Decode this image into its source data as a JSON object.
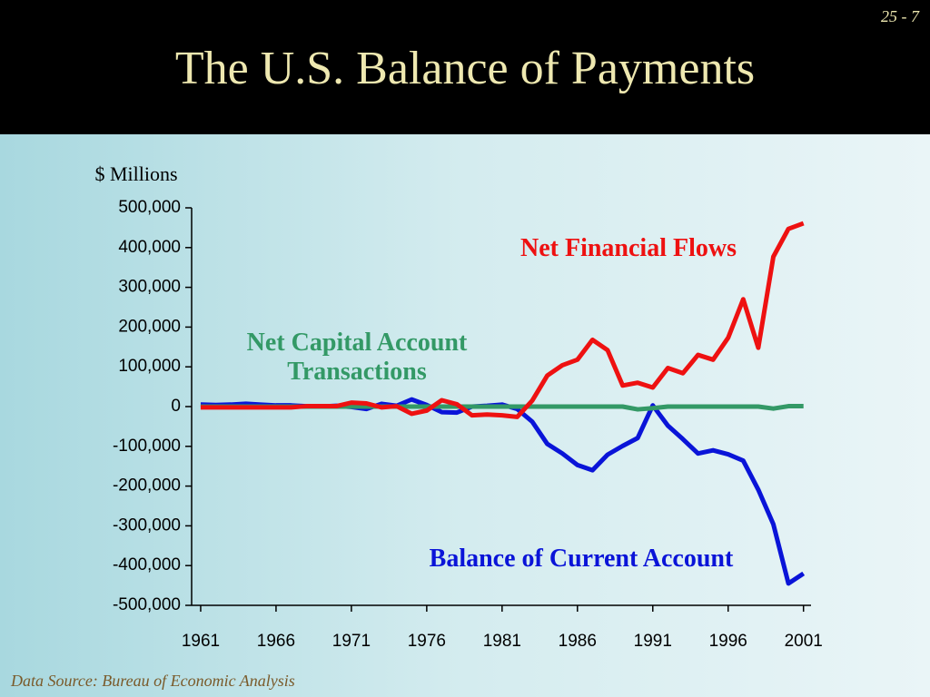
{
  "slide_number": "25 - 7",
  "title": "The U.S. Balance of Payments",
  "source": "Data Source: Bureau of Economic Analysis",
  "chart_data": {
    "type": "line",
    "y_label": "$ Millions",
    "x": [
      1961,
      1962,
      1963,
      1964,
      1965,
      1966,
      1967,
      1968,
      1969,
      1970,
      1971,
      1972,
      1973,
      1974,
      1975,
      1976,
      1977,
      1978,
      1979,
      1980,
      1981,
      1982,
      1983,
      1984,
      1985,
      1986,
      1987,
      1988,
      1989,
      1990,
      1991,
      1992,
      1993,
      1994,
      1995,
      1996,
      1997,
      1998,
      1999,
      2000,
      2001
    ],
    "xlim": [
      1960.4,
      2001.5
    ],
    "xticks": [
      1961,
      1966,
      1971,
      1976,
      1981,
      1986,
      1991,
      1996,
      2001
    ],
    "ylim": [
      -500000,
      500000
    ],
    "yticks": [
      {
        "value": -500000,
        "label": "-500,000"
      },
      {
        "value": -400000,
        "label": "-400,000"
      },
      {
        "value": -300000,
        "label": "-300,000"
      },
      {
        "value": -200000,
        "label": "-200,000"
      },
      {
        "value": -100000,
        "label": "-100,000"
      },
      0,
      {
        "value": 100000,
        "label": "100,000"
      },
      {
        "value": 200000,
        "label": "200,000"
      },
      {
        "value": 300000,
        "label": "300,000"
      },
      {
        "value": 400000,
        "label": "400,000"
      },
      {
        "value": 500000,
        "label": "500,000"
      }
    ],
    "series": [
      {
        "name": "Balance of Current Account",
        "color": "#0a14d8",
        "values": [
          5000,
          4000,
          5000,
          7000,
          5000,
          3000,
          3000,
          1000,
          0,
          2000,
          -1000,
          -6000,
          7000,
          2000,
          18000,
          4000,
          -14000,
          -15000,
          0,
          2000,
          5000,
          -6000,
          -38000,
          -94000,
          -118000,
          -147000,
          -160000,
          -121000,
          -99000,
          -79000,
          3000,
          -48000,
          -82000,
          -118000,
          -110000,
          -120000,
          -136000,
          -209000,
          -296000,
          -445000,
          -420000
        ]
      },
      {
        "name": "Net Capital Account Transactions",
        "color": "#339966",
        "values": [
          0,
          0,
          0,
          0,
          0,
          0,
          0,
          0,
          0,
          0,
          0,
          0,
          0,
          0,
          0,
          0,
          0,
          0,
          0,
          0,
          0,
          0,
          0,
          0,
          0,
          0,
          0,
          0,
          0,
          -7000,
          -4000,
          0,
          0,
          0,
          0,
          0,
          0,
          0,
          -5000,
          1000,
          1000
        ]
      },
      {
        "name": "Net Financial Flows",
        "color": "#ee1111",
        "values": [
          -2000,
          -2000,
          -2000,
          -2000,
          -2000,
          -2000,
          -2000,
          1000,
          1000,
          1000,
          10000,
          8000,
          -2000,
          1000,
          -18000,
          -10000,
          16000,
          6000,
          -22000,
          -20000,
          -22000,
          -26000,
          15000,
          78000,
          104000,
          118000,
          168000,
          142000,
          53000,
          60000,
          48000,
          97000,
          84000,
          130000,
          118000,
          173000,
          270000,
          148000,
          377000,
          447000,
          461000
        ]
      }
    ]
  }
}
